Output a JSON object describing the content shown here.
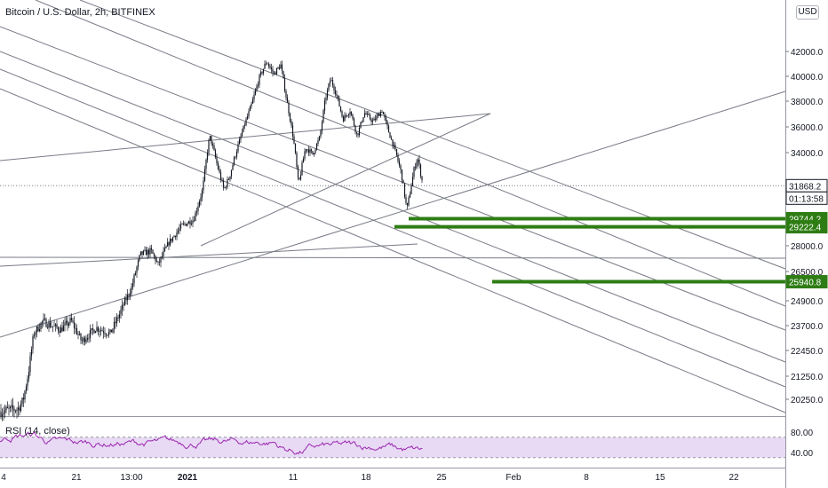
{
  "header": {
    "title": "Bitcoin / U.S. Dollar, 2h, BITFINEX",
    "currency": "USD"
  },
  "colors": {
    "candle": "#131722",
    "trendline": "#787b86",
    "support": "#2e7d14",
    "rsi_line": "#9c27b0",
    "rsi_band": "#e8daf5",
    "price_line": "#787b86"
  },
  "chart_data": {
    "type": "candlestick",
    "symbol": "Bitcoin / U.S. Dollar",
    "interval": "2h",
    "exchange": "BITFINEX",
    "x_tick_labels": [
      "4",
      "21",
      "13:00",
      "2021",
      "11",
      "18",
      "25",
      "Feb",
      "8",
      "15",
      "22"
    ],
    "y_tick_labels": [
      "42000.0",
      "40000.0",
      "38000.0",
      "36000.0",
      "34000.0",
      "28000.0",
      "26500.0",
      "24900.0",
      "23700.0",
      "22450.0",
      "21250.0",
      "20250.0"
    ],
    "y_ticks": [
      42000,
      40000,
      38000,
      36000,
      34000,
      28000,
      26500,
      24900,
      23700,
      22450,
      21250,
      20250
    ],
    "price_badges": [
      {
        "value": 31868.2,
        "label": "31868.2",
        "style": "dark"
      },
      {
        "value": 31168,
        "label": "01:13:58",
        "style": "dark"
      },
      {
        "value": 29744.2,
        "label": "29744.2",
        "style": "green"
      },
      {
        "value": 29222.4,
        "label": "29222.4",
        "style": "green"
      },
      {
        "value": 25940.8,
        "label": "25940.8",
        "style": "green"
      }
    ],
    "current_price": 31868.2,
    "countdown": "01:13:58",
    "support_levels": [
      29744.2,
      29222.4,
      25940.8
    ],
    "rsi": {
      "label": "RSI (14, close)",
      "period": 14,
      "source": "close",
      "upper_band": 70,
      "lower_band": 30,
      "tick_labels": [
        "80.00",
        "40.00"
      ],
      "ticks": [
        80,
        40
      ]
    }
  }
}
